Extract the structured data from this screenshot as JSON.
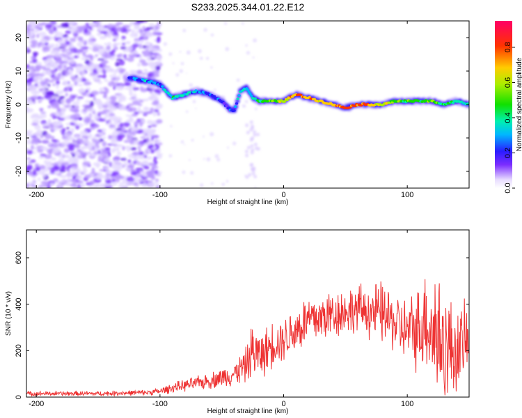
{
  "title": "S233.2025.344.01.22.E12",
  "chart_data": [
    {
      "type": "heatmap",
      "xlabel": "Height of straight line (km)",
      "ylabel": "Frequency (Hz)",
      "xlim": [
        -208,
        150
      ],
      "ylim": [
        -25,
        25
      ],
      "xticks": [
        -200,
        -100,
        0,
        100
      ],
      "yticks": [
        -20,
        -10,
        0,
        10,
        20
      ],
      "colorbar": {
        "label": "Normalized spectral amplitude",
        "range": [
          0.0,
          0.95
        ],
        "ticks": [
          0.0,
          0.2,
          0.4,
          0.6,
          0.8
        ]
      },
      "noise_region_x": [
        -208,
        -100
      ],
      "ridge": {
        "x": [
          -125,
          -110,
          -100,
          -90,
          -80,
          -70,
          -60,
          -50,
          -45,
          -40,
          -35,
          -30,
          -25,
          -20,
          -10,
          0,
          10,
          20,
          30,
          40,
          50,
          60,
          70,
          80,
          90,
          100,
          110,
          120,
          130,
          140,
          150
        ],
        "freq": [
          8,
          7,
          6,
          2,
          3,
          4,
          3,
          1,
          -1,
          -2,
          4,
          5,
          2,
          1,
          1,
          1,
          3,
          2,
          1,
          0,
          -1,
          0,
          0,
          0,
          1,
          1,
          1,
          1,
          0,
          1,
          0
        ],
        "amplitude": [
          0.3,
          0.35,
          0.3,
          0.45,
          0.4,
          0.35,
          0.3,
          0.3,
          0.25,
          0.35,
          0.4,
          0.4,
          0.4,
          0.5,
          0.6,
          0.7,
          0.9,
          0.8,
          0.75,
          0.8,
          0.9,
          0.9,
          0.8,
          0.7,
          0.6,
          0.55,
          0.55,
          0.6,
          0.5,
          0.45,
          0.4
        ]
      }
    },
    {
      "type": "line",
      "xlabel": "Height of straight line (km)",
      "ylabel": "SNR (10 * v/v)",
      "xlim": [
        -208,
        150
      ],
      "ylim": [
        0,
        720
      ],
      "xticks": [
        -200,
        -100,
        0,
        100
      ],
      "yticks": [
        0,
        200,
        400,
        600
      ],
      "series": [
        {
          "name": "SNR",
          "color": "#ee3333",
          "envelope_x": [
            -208,
            -150,
            -110,
            -100,
            -90,
            -80,
            -60,
            -40,
            -30,
            -25,
            -20,
            -15,
            -10,
            0,
            10,
            20,
            30,
            40,
            50,
            60,
            70,
            80,
            90,
            100,
            110,
            115,
            120,
            125,
            130,
            140,
            150
          ],
          "envelope_mean": [
            15,
            15,
            20,
            25,
            40,
            50,
            70,
            100,
            140,
            200,
            180,
            190,
            230,
            250,
            290,
            330,
            340,
            360,
            370,
            380,
            370,
            360,
            320,
            280,
            300,
            340,
            300,
            260,
            220,
            200,
            250
          ],
          "envelope_spread": [
            12,
            12,
            14,
            18,
            25,
            30,
            40,
            60,
            90,
            160,
            110,
            120,
            120,
            110,
            130,
            140,
            130,
            130,
            120,
            120,
            140,
            160,
            150,
            170,
            220,
            260,
            320,
            380,
            300,
            220,
            180
          ]
        }
      ]
    }
  ]
}
